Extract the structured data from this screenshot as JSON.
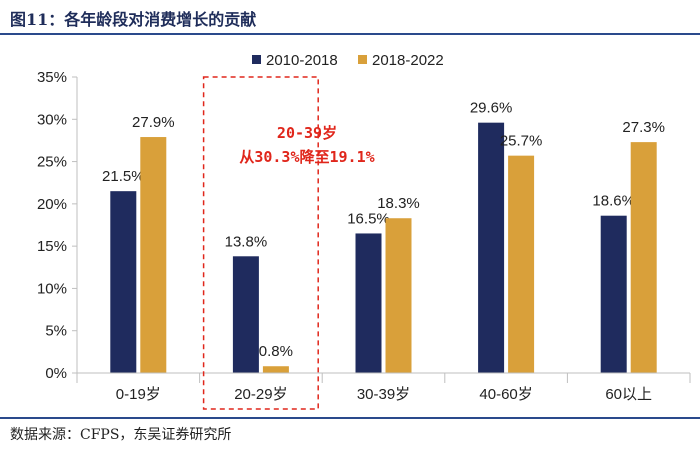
{
  "figure_title": "图11：各年龄段对消费增长的贡献",
  "source": "数据来源：CFPS，东吴证券研究所",
  "colors": {
    "series1": "#1f2b5e",
    "series2": "#d9a03a",
    "annotation": "#e0261b",
    "axis": "#bfbfbf"
  },
  "chart_data": {
    "type": "bar",
    "title": "各年龄段对消费增长的贡献",
    "categories": [
      "0-19岁",
      "20-29岁",
      "30-39岁",
      "40-60岁",
      "60以上"
    ],
    "series": [
      {
        "name": "2010-2018",
        "values": [
          21.5,
          13.8,
          16.5,
          29.6,
          18.6
        ],
        "labels": [
          "21.5%",
          "13.8%",
          "16.5%",
          "29.6%",
          "18.6%"
        ]
      },
      {
        "name": "2018-2022",
        "values": [
          27.9,
          0.8,
          18.3,
          25.7,
          27.3
        ],
        "labels": [
          "27.9%",
          "0.8%",
          "18.3%",
          "25.7%",
          "27.3%"
        ]
      }
    ],
    "ylim": [
      0,
      35
    ],
    "yticks": [
      "0%",
      "5%",
      "10%",
      "15%",
      "20%",
      "25%",
      "30%",
      "35%"
    ],
    "ytick_values": [
      0,
      5,
      10,
      15,
      20,
      25,
      30,
      35
    ],
    "legend_position": "top",
    "annotation": {
      "line1": "20-39岁",
      "line2": "从30.3%降至19.1%",
      "highlight_category": "20-29岁"
    }
  }
}
